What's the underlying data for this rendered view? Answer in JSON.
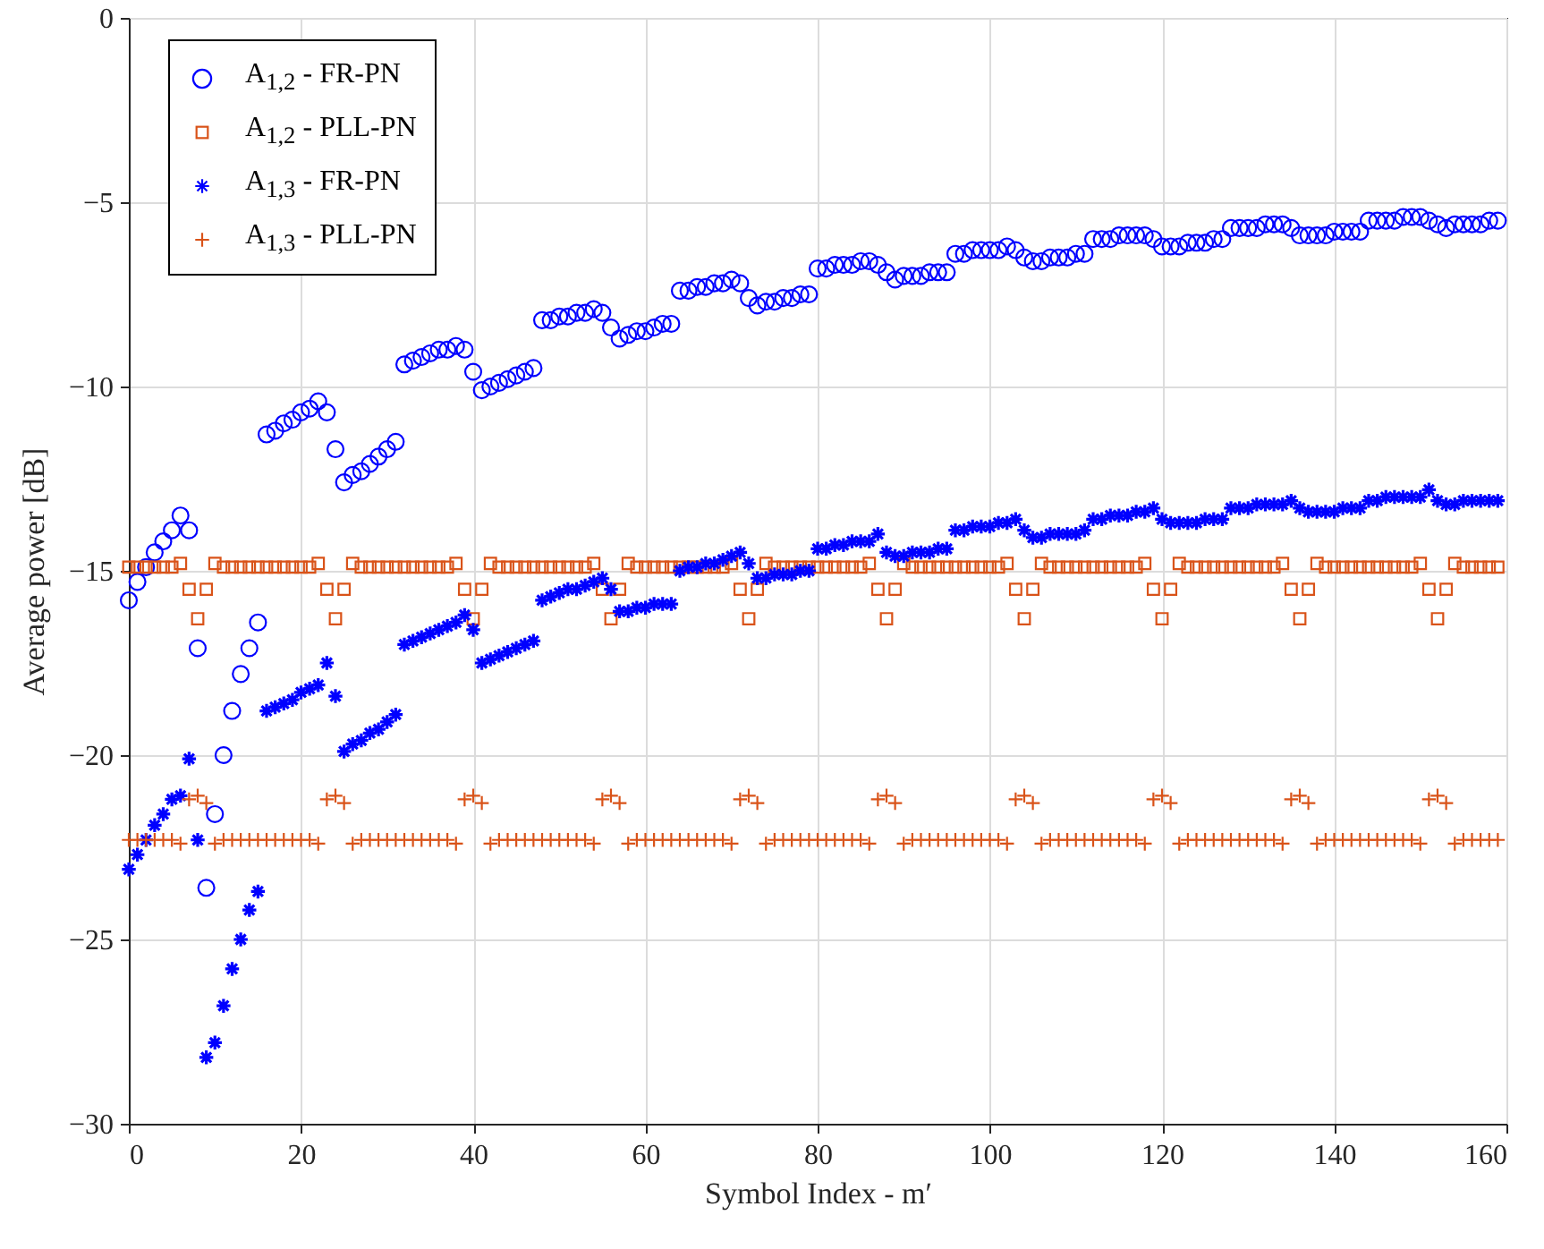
{
  "chart_data": {
    "type": "scatter",
    "xlabel": "Symbol Index - m′",
    "ylabel": "Average power [dB]",
    "xlim": [
      0,
      160
    ],
    "xticks": [
      0,
      20,
      40,
      60,
      80,
      100,
      120,
      140,
      160
    ],
    "ylim": [
      -30,
      0
    ],
    "yticks": [
      -30,
      -25,
      -20,
      -15,
      -10,
      -5,
      0
    ],
    "grid": true,
    "legend": "top left",
    "x": [
      0,
      1,
      2,
      3,
      4,
      5,
      6,
      7,
      8,
      9,
      10,
      11,
      12,
      13,
      14,
      15,
      16,
      17,
      18,
      19,
      20,
      21,
      22,
      23,
      24,
      25,
      26,
      27,
      28,
      29,
      30,
      31,
      32,
      33,
      34,
      35,
      36,
      37,
      38,
      39,
      40,
      41,
      42,
      43,
      44,
      45,
      46,
      47,
      48,
      49,
      50,
      51,
      52,
      53,
      54,
      55,
      56,
      57,
      58,
      59,
      60,
      61,
      62,
      63,
      64,
      65,
      66,
      67,
      68,
      69,
      70,
      71,
      72,
      73,
      74,
      75,
      76,
      77,
      78,
      79,
      80,
      81,
      82,
      83,
      84,
      85,
      86,
      87,
      88,
      89,
      90,
      91,
      92,
      93,
      94,
      95,
      96,
      97,
      98,
      99,
      100,
      101,
      102,
      103,
      104,
      105,
      106,
      107,
      108,
      109,
      110,
      111,
      112,
      113,
      114,
      115,
      116,
      117,
      118,
      119,
      120,
      121,
      122,
      123,
      124,
      125,
      126,
      127,
      128,
      129,
      130,
      131,
      132,
      133,
      134,
      135,
      136,
      137,
      138,
      139,
      140,
      141,
      142,
      143,
      144,
      145,
      146,
      147,
      148,
      149,
      150,
      151,
      152,
      153,
      154,
      155,
      156,
      157,
      158,
      159
    ],
    "series": [
      {
        "name": "A$_{1,2}$ - FR-PN",
        "color": "#0000ff",
        "marker": "circle",
        "values": [
          -15.8,
          -15.3,
          -14.9,
          -14.5,
          -14.2,
          -13.9,
          -13.5,
          -13.9,
          -17.1,
          -23.6,
          -21.6,
          -20.0,
          -18.8,
          -17.8,
          -17.1,
          -16.4,
          -11.3,
          -11.2,
          -11.0,
          -10.9,
          -10.7,
          -10.6,
          -10.4,
          -10.7,
          -11.7,
          -12.6,
          -12.4,
          -12.3,
          -12.1,
          -11.9,
          -11.7,
          -11.5,
          -9.4,
          -9.3,
          -9.2,
          -9.1,
          -9.0,
          -9.0,
          -8.9,
          -9.0,
          -9.6,
          -10.1,
          -10.0,
          -9.9,
          -9.8,
          -9.7,
          -9.6,
          -9.5,
          -8.2,
          -8.2,
          -8.1,
          -8.1,
          -8.0,
          -8.0,
          -7.9,
          -8.0,
          -8.4,
          -8.7,
          -8.6,
          -8.5,
          -8.5,
          -8.4,
          -8.3,
          -8.3,
          -7.4,
          -7.4,
          -7.3,
          -7.3,
          -7.2,
          -7.2,
          -7.1,
          -7.2,
          -7.6,
          -7.8,
          -7.7,
          -7.7,
          -7.6,
          -7.6,
          -7.5,
          -7.5,
          -6.8,
          -6.8,
          -6.7,
          -6.7,
          -6.7,
          -6.6,
          -6.6,
          -6.7,
          -6.9,
          -7.1,
          -7.0,
          -7.0,
          -7.0,
          -6.9,
          -6.9,
          -6.9,
          -6.4,
          -6.4,
          -6.3,
          -6.3,
          -6.3,
          -6.3,
          -6.2,
          -6.3,
          -6.5,
          -6.6,
          -6.6,
          -6.5,
          -6.5,
          -6.5,
          -6.4,
          -6.4,
          -6.0,
          -6.0,
          -6.0,
          -5.9,
          -5.9,
          -5.9,
          -5.9,
          -6.0,
          -6.2,
          -6.2,
          -6.2,
          -6.1,
          -6.1,
          -6.1,
          -6.0,
          -6.0,
          -5.7,
          -5.7,
          -5.7,
          -5.7,
          -5.6,
          -5.6,
          -5.6,
          -5.7,
          -5.9,
          -5.9,
          -5.9,
          -5.9,
          -5.8,
          -5.8,
          -5.8,
          -5.8,
          -5.5,
          -5.5,
          -5.5,
          -5.5,
          -5.4,
          -5.4,
          -5.4,
          -5.5,
          -5.6,
          -5.7,
          -5.6,
          -5.6,
          -5.6,
          -5.6,
          -5.5,
          -5.5
        ]
      },
      {
        "name": "A$_{1,2}$ - PLL-PN",
        "color": "#d95319",
        "marker": "square",
        "values": [
          -14.9,
          -14.9,
          -14.9,
          -14.9,
          -14.9,
          -14.9,
          -14.8,
          -15.5,
          -16.3,
          -15.5,
          -14.8,
          -14.9,
          -14.9,
          -14.9,
          -14.9,
          -14.9,
          -14.9,
          -14.9,
          -14.9,
          -14.9,
          -14.9,
          -14.9,
          -14.8,
          -15.5,
          -16.3,
          -15.5,
          -14.8,
          -14.9,
          -14.9,
          -14.9,
          -14.9,
          -14.9,
          -14.9,
          -14.9,
          -14.9,
          -14.9,
          -14.9,
          -14.9,
          -14.8,
          -15.5,
          -16.3,
          -15.5,
          -14.8,
          -14.9,
          -14.9,
          -14.9,
          -14.9,
          -14.9,
          -14.9,
          -14.9,
          -14.9,
          -14.9,
          -14.9,
          -14.9,
          -14.8,
          -15.5,
          -16.3,
          -15.5,
          -14.8,
          -14.9,
          -14.9,
          -14.9,
          -14.9,
          -14.9,
          -14.9,
          -14.9,
          -14.9,
          -14.9,
          -14.9,
          -14.9,
          -14.8,
          -15.5,
          -16.3,
          -15.5,
          -14.8,
          -14.9,
          -14.9,
          -14.9,
          -14.9,
          -14.9,
          -14.9,
          -14.9,
          -14.9,
          -14.9,
          -14.9,
          -14.9,
          -14.8,
          -15.5,
          -16.3,
          -15.5,
          -14.8,
          -14.9,
          -14.9,
          -14.9,
          -14.9,
          -14.9,
          -14.9,
          -14.9,
          -14.9,
          -14.9,
          -14.9,
          -14.9,
          -14.8,
          -15.5,
          -16.3,
          -15.5,
          -14.8,
          -14.9,
          -14.9,
          -14.9,
          -14.9,
          -14.9,
          -14.9,
          -14.9,
          -14.9,
          -14.9,
          -14.9,
          -14.9,
          -14.8,
          -15.5,
          -16.3,
          -15.5,
          -14.8,
          -14.9,
          -14.9,
          -14.9,
          -14.9,
          -14.9,
          -14.9,
          -14.9,
          -14.9,
          -14.9,
          -14.9,
          -14.9,
          -14.8,
          -15.5,
          -16.3,
          -15.5,
          -14.8,
          -14.9,
          -14.9,
          -14.9,
          -14.9,
          -14.9,
          -14.9,
          -14.9,
          -14.9,
          -14.9,
          -14.9,
          -14.9,
          -14.8,
          -15.5,
          -16.3,
          -15.5,
          -14.8,
          -14.9,
          -14.9,
          -14.9,
          -14.9,
          -14.9
        ]
      },
      {
        "name": "A$_{1,3}$ - FR-PN",
        "color": "#0000ff",
        "values": [
          -23.1,
          -22.7,
          -22.3,
          -21.9,
          -21.6,
          -21.2,
          -21.1,
          -20.1,
          -22.3,
          -28.2,
          -27.8,
          -26.8,
          -25.8,
          -25.0,
          -24.2,
          -23.7,
          -18.8,
          -18.7,
          -18.6,
          -18.5,
          -18.3,
          -18.2,
          -18.1,
          -17.5,
          -18.4,
          -19.9,
          -19.7,
          -19.6,
          -19.4,
          -19.3,
          -19.1,
          -18.9,
          -17.0,
          -16.9,
          -16.8,
          -16.7,
          -16.6,
          -16.5,
          -16.4,
          -16.2,
          -16.6,
          -17.5,
          -17.4,
          -17.3,
          -17.2,
          -17.1,
          -17.0,
          -16.9,
          -15.8,
          -15.7,
          -15.6,
          -15.5,
          -15.5,
          -15.4,
          -15.3,
          -15.2,
          -15.5,
          -16.1,
          -16.1,
          -16.0,
          -16.0,
          -15.9,
          -15.9,
          -15.9,
          -15.0,
          -14.9,
          -14.9,
          -14.8,
          -14.8,
          -14.7,
          -14.6,
          -14.5,
          -14.8,
          -15.2,
          -15.2,
          -15.1,
          -15.1,
          -15.1,
          -15.0,
          -15.0,
          -14.4,
          -14.4,
          -14.3,
          -14.3,
          -14.2,
          -14.2,
          -14.2,
          -14.0,
          -14.5,
          -14.6,
          -14.6,
          -14.5,
          -14.5,
          -14.5,
          -14.4,
          -14.4,
          -13.9,
          -13.9,
          -13.8,
          -13.8,
          -13.8,
          -13.7,
          -13.7,
          -13.6,
          -13.9,
          -14.1,
          -14.1,
          -14.0,
          -14.0,
          -14.0,
          -14.0,
          -13.9,
          -13.6,
          -13.6,
          -13.5,
          -13.5,
          -13.5,
          -13.4,
          -13.4,
          -13.3,
          -13.6,
          -13.7,
          -13.7,
          -13.7,
          -13.7,
          -13.6,
          -13.6,
          -13.6,
          -13.3,
          -13.3,
          -13.3,
          -13.2,
          -13.2,
          -13.2,
          -13.2,
          -13.1,
          -13.3,
          -13.4,
          -13.4,
          -13.4,
          -13.4,
          -13.3,
          -13.3,
          -13.3,
          -13.1,
          -13.1,
          -13.0,
          -13.0,
          -13.0,
          -13.0,
          -13.0,
          -12.8,
          -13.1,
          -13.2,
          -13.2,
          -13.1,
          -13.1,
          -13.1,
          -13.1,
          -13.1
        ]
      },
      {
        "name": "A$_{1,3}$ - PLL-PN",
        "color": "#d95319",
        "marker": "cross",
        "values": [
          -22.3,
          -22.3,
          -22.3,
          -22.3,
          -22.3,
          -22.3,
          -22.4,
          -21.2,
          -21.1,
          -21.3,
          -22.4,
          -22.3,
          -22.3,
          -22.3,
          -22.3,
          -22.3,
          -22.3,
          -22.3,
          -22.3,
          -22.3,
          -22.3,
          -22.3,
          -22.4,
          -21.2,
          -21.1,
          -21.3,
          -22.4,
          -22.3,
          -22.3,
          -22.3,
          -22.3,
          -22.3,
          -22.3,
          -22.3,
          -22.3,
          -22.3,
          -22.3,
          -22.3,
          -22.4,
          -21.2,
          -21.1,
          -21.3,
          -22.4,
          -22.3,
          -22.3,
          -22.3,
          -22.3,
          -22.3,
          -22.3,
          -22.3,
          -22.3,
          -22.3,
          -22.3,
          -22.3,
          -22.4,
          -21.2,
          -21.1,
          -21.3,
          -22.4,
          -22.3,
          -22.3,
          -22.3,
          -22.3,
          -22.3,
          -22.3,
          -22.3,
          -22.3,
          -22.3,
          -22.3,
          -22.3,
          -22.4,
          -21.2,
          -21.1,
          -21.3,
          -22.4,
          -22.3,
          -22.3,
          -22.3,
          -22.3,
          -22.3,
          -22.3,
          -22.3,
          -22.3,
          -22.3,
          -22.3,
          -22.3,
          -22.4,
          -21.2,
          -21.1,
          -21.3,
          -22.4,
          -22.3,
          -22.3,
          -22.3,
          -22.3,
          -22.3,
          -22.3,
          -22.3,
          -22.3,
          -22.3,
          -22.3,
          -22.3,
          -22.4,
          -21.2,
          -21.1,
          -21.3,
          -22.4,
          -22.3,
          -22.3,
          -22.3,
          -22.3,
          -22.3,
          -22.3,
          -22.3,
          -22.3,
          -22.3,
          -22.3,
          -22.3,
          -22.4,
          -21.2,
          -21.1,
          -21.3,
          -22.4,
          -22.3,
          -22.3,
          -22.3,
          -22.3,
          -22.3,
          -22.3,
          -22.3,
          -22.3,
          -22.3,
          -22.3,
          -22.3,
          -22.4,
          -21.2,
          -21.1,
          -21.3,
          -22.4,
          -22.3,
          -22.3,
          -22.3,
          -22.3,
          -22.3,
          -22.3,
          -22.3,
          -22.3,
          -22.3,
          -22.3,
          -22.3,
          -22.4,
          -21.2,
          -21.1,
          -21.3,
          -22.4,
          -22.3,
          -22.3,
          -22.3,
          -22.3,
          -22.3
        ]
      }
    ]
  }
}
